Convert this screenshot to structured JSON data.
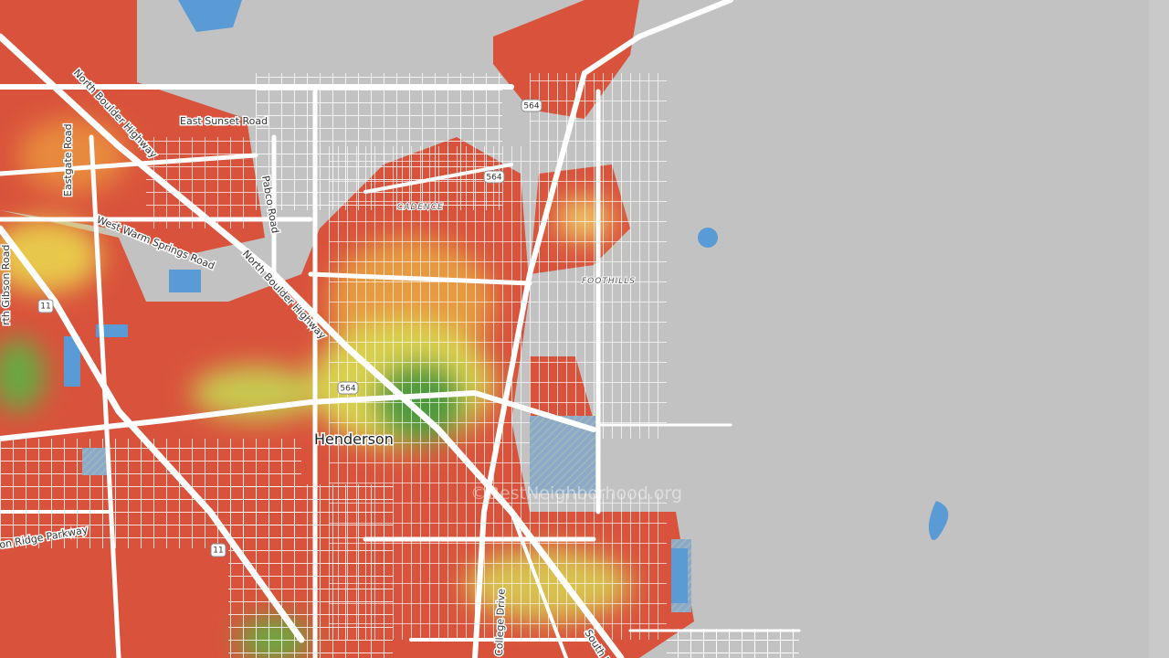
{
  "roads": {
    "north_boulder_highway_1": "North Boulder Highway",
    "north_boulder_highway_2": "North Boulder Highway",
    "east_sunset_road": "East Sunset Road",
    "eastgate_road": "Eastgate Road",
    "west_warm_springs_road": "West Warm Springs Road",
    "pabco_road": "Pabco Road",
    "gibson_road": "rth Gibson Road",
    "ridge_parkway": "on Ridge Parkway",
    "college_drive": "College Drive",
    "south_b": "South B"
  },
  "places": {
    "henderson": "Henderson",
    "cadence": "CADENCE",
    "foothills": "FOOTHILLS"
  },
  "shields": [
    "564",
    "564",
    "564",
    "11",
    "11"
  ],
  "watermark": "©BestNeighborhood.org"
}
